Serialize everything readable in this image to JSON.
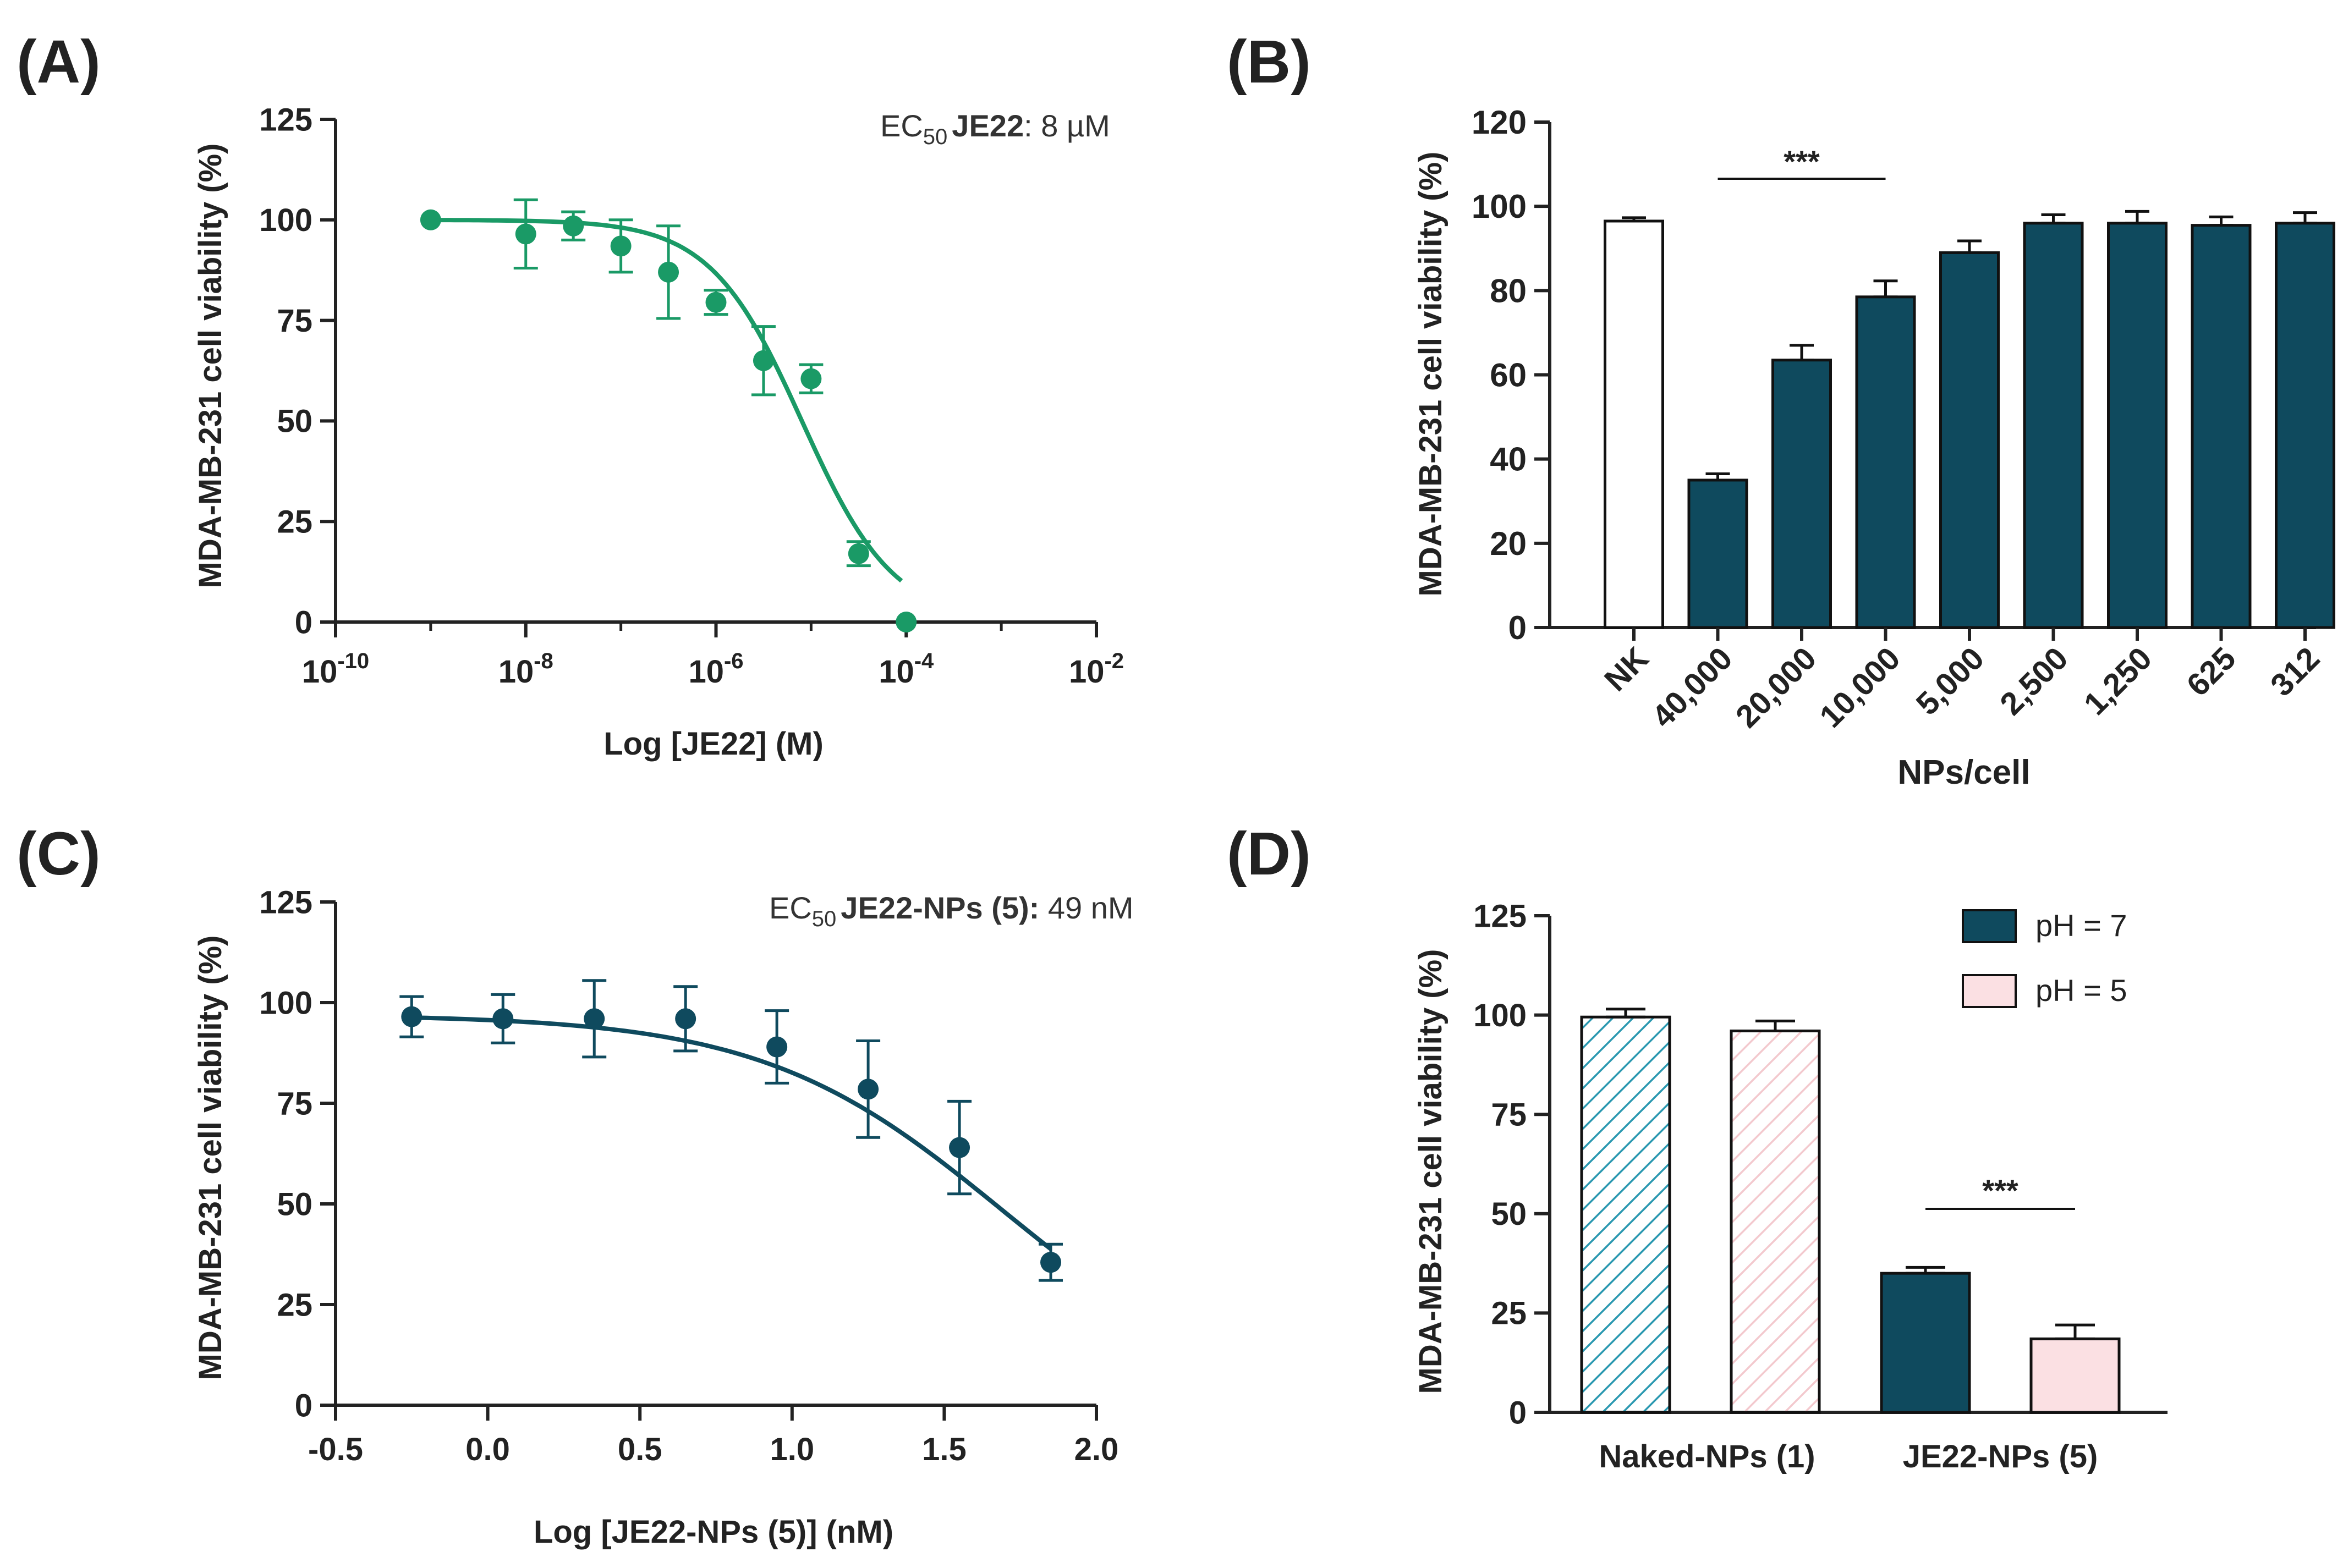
{
  "colors": {
    "green": "#1a9a66",
    "navy": "#0f4a5e",
    "pink": "#fbe0e3",
    "hatch_teal": "#2a98b0",
    "hatch_pink": "#f3c9ce",
    "axis": "#222222"
  },
  "chart_data": [
    {
      "panel": "(A)",
      "type": "scatter",
      "title_prefix": "EC",
      "title_sub": "50",
      "title_bold": "JE22",
      "title_rest": ":  8 µM",
      "xlabel": "Log [JE22] (M)",
      "ylabel": "MDA-MB-231 cell viability (%)",
      "xscale": "log",
      "xlim_exp": [
        -10,
        -2
      ],
      "xticks": [
        {
          "base": "10",
          "exp": "-10"
        },
        {
          "base": "10",
          "exp": "-8"
        },
        {
          "base": "10",
          "exp": "-6"
        },
        {
          "base": "10",
          "exp": "-4"
        },
        {
          "base": "10",
          "exp": "-2"
        }
      ],
      "ylim": [
        0,
        125
      ],
      "yticks": [
        "0",
        "25",
        "50",
        "75",
        "100",
        "125"
      ],
      "x_log": [
        -9.0,
        -8.0,
        -7.5,
        -7.0,
        -6.5,
        -6.0,
        -5.5,
        -5.0,
        -4.5,
        -4.0
      ],
      "y": [
        100,
        96.5,
        98.5,
        93.5,
        87,
        79.5,
        65,
        60.5,
        17,
        0
      ],
      "err": [
        0,
        8.5,
        3.5,
        6.5,
        11.5,
        3,
        8.5,
        3.5,
        3,
        0
      ],
      "fit": {
        "top": 100,
        "bottom": 0,
        "logEC50": -5.097,
        "hill": -0.9
      }
    },
    {
      "panel": "(B)",
      "type": "bar",
      "xlabel": "NPs/cell",
      "ylabel": "MDA-MB-231 cell viability (%)",
      "ylim": [
        0,
        120
      ],
      "yticks": [
        "0",
        "20",
        "40",
        "60",
        "80",
        "100",
        "120"
      ],
      "categories": [
        "NK",
        "40,000",
        "20,000",
        "10,000",
        "5,000",
        "2,500",
        "1,250",
        "625",
        "312"
      ],
      "values": [
        96.5,
        35,
        63.5,
        78.5,
        89,
        96,
        96,
        95.5,
        96
      ],
      "err": [
        0.8,
        1.5,
        3.5,
        3.8,
        2.8,
        2,
        2.8,
        2,
        2.5
      ],
      "fill": [
        "white",
        "navy",
        "navy",
        "navy",
        "navy",
        "navy",
        "navy",
        "navy",
        "navy"
      ],
      "significance": "***"
    },
    {
      "panel": "(C)",
      "type": "scatter",
      "title_prefix": "EC",
      "title_sub": "50",
      "title_bold": "JE22-NPs (5):",
      "title_rest": " 49 nM",
      "xlabel": "Log [JE22-NPs (5)] (nM)",
      "ylabel": "MDA-MB-231 cell viability (%)",
      "xlim": [
        -0.5,
        2.0
      ],
      "xticks": [
        "-0.5",
        "0.0",
        "0.5",
        "1.0",
        "1.5",
        "2.0"
      ],
      "ylim": [
        0,
        125
      ],
      "yticks": [
        "0",
        "25",
        "50",
        "75",
        "100",
        "125"
      ],
      "x": [
        -0.25,
        0.05,
        0.35,
        0.65,
        0.95,
        1.25,
        1.55,
        1.85
      ],
      "y": [
        96.5,
        96,
        96,
        96,
        89,
        78.5,
        64,
        35.5
      ],
      "err": [
        5,
        6,
        9.5,
        8,
        9,
        12,
        11.5,
        4.5
      ],
      "fit": {
        "top": 97,
        "bottom": 0,
        "logEC50": 1.69,
        "hill": -1.1
      }
    },
    {
      "panel": "(D)",
      "type": "bar",
      "ylabel": "MDA-MB-231 cell viability (%)",
      "ylim": [
        0,
        125
      ],
      "yticks": [
        "0",
        "25",
        "50",
        "75",
        "100",
        "125"
      ],
      "categories": [
        "Naked-NPs (1)",
        "JE22-NPs (5)"
      ],
      "series": [
        {
          "name": "pH = 7",
          "values": [
            99.5,
            35
          ],
          "err": [
            2,
            1.5
          ]
        },
        {
          "name": "pH = 5",
          "values": [
            96,
            18.5
          ],
          "err": [
            2.5,
            3.5
          ]
        }
      ],
      "legend": [
        "pH = 7",
        "pH = 5"
      ],
      "legend_position": "top-right",
      "significance": "***"
    }
  ]
}
